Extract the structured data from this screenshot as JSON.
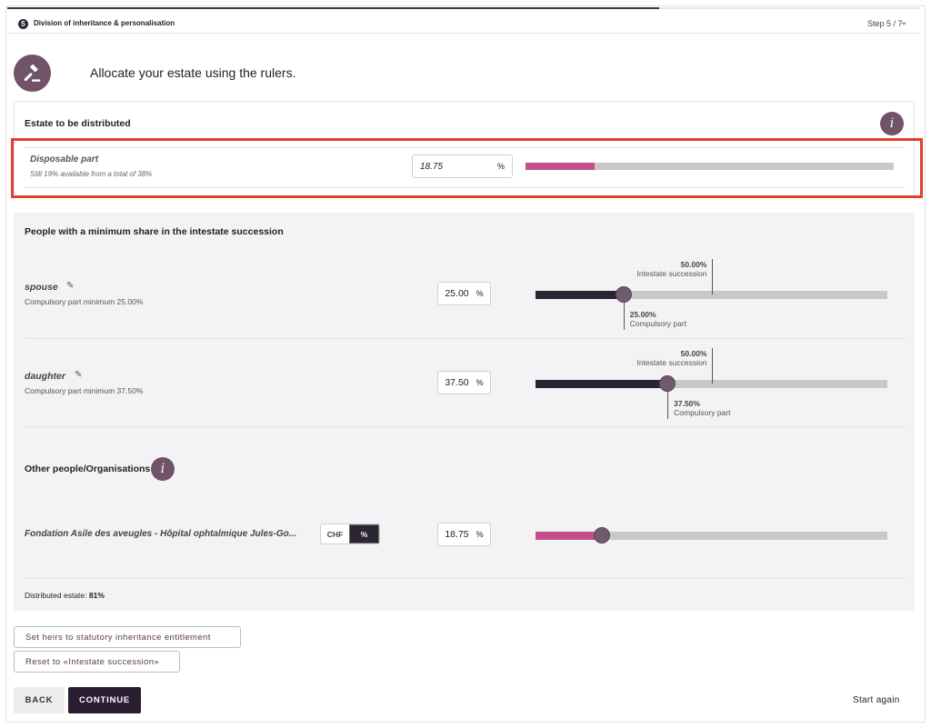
{
  "header": {
    "step_number": "5",
    "step_title": "Division of inheritance & personalisation",
    "step_indicator": "Step 5 / 7",
    "progress_fraction": 0.714
  },
  "page_heading": "Allocate your estate using the rulers.",
  "estate": {
    "title": "Estate to be distributed",
    "info_glyph": "i",
    "disposable": {
      "label": "Disposable part",
      "subtitle": "Still 19% available from a total of 38%",
      "value": "18.75",
      "unit": "%",
      "bar_percent": 18.75,
      "bar_color": "#c44e8c"
    }
  },
  "minimum_share": {
    "title": "People with a minimum share in the intestate succession",
    "people": [
      {
        "name": "spouse",
        "subtitle": "Compulsory part minimum 25.00%",
        "value": "25.00",
        "unit": "%",
        "slider_percent": 25.0,
        "intestate_percent": 50.0,
        "intestate_value": "50.00%",
        "intestate_label": "Intestate succession",
        "compulsory_value": "25.00%",
        "compulsory_label": "Compulsory part"
      },
      {
        "name": "daughter",
        "subtitle": "Compulsory part minimum 37.50%",
        "value": "37.50",
        "unit": "%",
        "slider_percent": 37.5,
        "intestate_percent": 50.0,
        "intestate_value": "50.00%",
        "intestate_label": "Intestate succession",
        "compulsory_value": "37.50%",
        "compulsory_label": "Compulsory part"
      }
    ]
  },
  "others": {
    "title": "Other people/Organisations",
    "info_glyph": "i",
    "items": [
      {
        "name": "Fondation Asile des aveugles - Hôpital ophtalmique Jules-Go...",
        "unit_options": [
          "CHF",
          "%"
        ],
        "selected_unit": "%",
        "value": "18.75",
        "unit": "%",
        "slider_percent": 18.75
      }
    ]
  },
  "distributed": {
    "label": "Distributed estate:",
    "value": "81%"
  },
  "buttons": {
    "set_heirs": "Set heirs to statutory inheritance entitlement",
    "reset": "Reset to «Intestate succession»",
    "back": "BACK",
    "continue": "CONTINUE",
    "start_again": "Start again"
  },
  "colors": {
    "accent": "#715367",
    "dark": "#2b1e33",
    "others_slider_fill": "#c44e8c",
    "people_slider_fill": "#2b2433",
    "highlight_border": "#e2402a"
  },
  "icons": {
    "step_badge": "step-number-badge",
    "gavel": "gavel-icon",
    "info": "info-icon",
    "pencil": "pencil-icon",
    "chevron": "chevron-down-icon"
  }
}
